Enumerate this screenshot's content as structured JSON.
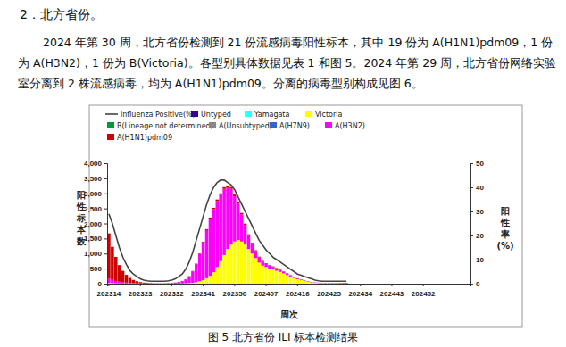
{
  "heading": "2．北方省份。",
  "paragraph": [
    "2024 年第 30 周，北方省份检测到 21 份流感病毒阳性标本，其中 19 份为 A(H1N1)pdm09，1 份",
    "为 A(H3N2)，1 份为 B(Victoria)。各型别具体数据见表 1 和图 5。2024 年第 29 周，北方省份网络实验",
    "室分离到 2 株流感病毒，均为 A(H1N1)pdm09。分离的病毒型别构成见图 6。"
  ],
  "caption": "图 5   北方省份 ILI 标本检测结果",
  "chart_data": {
    "type": "bar",
    "stacked": true,
    "grid": false,
    "legend": "top-left",
    "x_label": "周次",
    "y_label": "阳性标本数",
    "y2_label": "阳性率(%)",
    "categories": [
      "202314",
      null,
      null,
      null,
      null,
      null,
      null,
      null,
      null,
      "202323",
      null,
      null,
      null,
      null,
      null,
      null,
      null,
      null,
      "202332",
      null,
      null,
      null,
      null,
      null,
      null,
      null,
      null,
      "202341",
      null,
      null,
      null,
      null,
      null,
      null,
      null,
      null,
      "202350",
      null,
      null,
      null,
      null,
      null,
      null,
      null,
      null,
      "202407",
      null,
      null,
      null,
      null,
      null,
      null,
      null,
      null,
      "202416",
      null,
      null,
      null,
      null,
      null,
      null,
      null,
      null,
      "202425",
      null,
      null,
      null,
      null,
      null,
      null,
      null,
      null,
      "202434",
      null,
      null,
      null,
      null,
      null,
      null,
      null,
      null,
      "202443",
      null,
      null,
      null,
      null,
      null,
      null,
      null,
      null,
      "202452",
      null,
      null,
      null,
      null,
      null,
      null,
      null,
      null,
      null,
      null,
      null,
      null,
      null
    ],
    "ylim": [
      0,
      4000
    ],
    "yticks": [
      0,
      500,
      {
        "value": 1000,
        "label": "1,000"
      },
      {
        "value": 1500,
        "label": "1,500"
      },
      {
        "value": 2000,
        "label": "2,000"
      },
      {
        "value": 2500,
        "label": "2,500"
      },
      {
        "value": 3000,
        "label": "3,000"
      },
      {
        "value": 3500,
        "label": "3,500"
      },
      {
        "value": 4000,
        "label": "4,000"
      }
    ],
    "y2lim": [
      0,
      50
    ],
    "y2ticks": [
      0,
      10,
      20,
      30,
      40,
      50
    ],
    "series": [
      {
        "name": "influenza Positive(%)",
        "type": "line",
        "axis": "y2",
        "color": "#444444",
        "values": [
          29,
          25,
          20,
          15,
          11,
          8,
          5.5,
          4,
          3,
          2,
          1.5,
          1.2,
          1,
          1,
          1,
          1,
          1,
          1.2,
          1.5,
          2,
          3,
          4,
          6,
          9,
          13,
          18,
          23,
          28,
          33,
          37,
          40,
          42,
          43,
          43,
          42,
          41,
          39,
          36,
          33,
          30,
          27,
          24,
          21,
          18,
          16,
          14,
          12.5,
          11,
          10,
          9,
          8,
          7,
          6,
          5,
          4,
          3.5,
          3,
          2.5,
          2,
          1.5,
          1.2,
          1,
          1,
          1,
          1,
          1,
          1,
          1,
          1,
          null,
          null,
          null,
          null,
          null,
          null,
          null,
          null,
          null,
          null,
          null,
          null,
          null,
          null,
          null,
          null,
          null,
          null,
          null,
          null,
          null,
          null,
          null,
          null,
          null,
          null,
          null,
          null,
          null,
          null,
          null,
          null,
          null,
          null,
          null
        ]
      },
      {
        "name": "Untyped",
        "type": "bar",
        "color": "#330099",
        "values": [
          0,
          0,
          0,
          0,
          0,
          0,
          0,
          0,
          0,
          0,
          0,
          0,
          0,
          0,
          0,
          0,
          0,
          0,
          0,
          0,
          0,
          0,
          0,
          0,
          0,
          0,
          0,
          0,
          0,
          0,
          0,
          0,
          0,
          0,
          0,
          0,
          0,
          0,
          0,
          0,
          0,
          0,
          0,
          0,
          0,
          0,
          0,
          0,
          0,
          0,
          0,
          0,
          0,
          0,
          0,
          0,
          0,
          0,
          0,
          0,
          0,
          0,
          0,
          0,
          0,
          0,
          0,
          0,
          0,
          null,
          null,
          null,
          null,
          null,
          null,
          null,
          null,
          null,
          null,
          null,
          null,
          null,
          null,
          null,
          null,
          null,
          null,
          null,
          null,
          null,
          null,
          null,
          null,
          null,
          null,
          null,
          null,
          null,
          null,
          null,
          null,
          null,
          null,
          null
        ]
      },
      {
        "name": "Yamagata",
        "type": "bar",
        "color": "#33ffff",
        "values": [
          0,
          0,
          0,
          0,
          0,
          0,
          0,
          0,
          0,
          0,
          0,
          0,
          0,
          0,
          0,
          0,
          0,
          0,
          0,
          0,
          0,
          0,
          0,
          0,
          0,
          0,
          0,
          0,
          0,
          0,
          0,
          0,
          0,
          0,
          0,
          0,
          0,
          0,
          0,
          0,
          0,
          0,
          0,
          0,
          0,
          0,
          0,
          0,
          0,
          0,
          0,
          0,
          0,
          0,
          0,
          0,
          0,
          0,
          0,
          0,
          0,
          0,
          0,
          0,
          0,
          0,
          0,
          0,
          0,
          null,
          null,
          null,
          null,
          null,
          null,
          null,
          null,
          null,
          null,
          null,
          null,
          null,
          null,
          null,
          null,
          null,
          null,
          null,
          null,
          null,
          null,
          null,
          null,
          null,
          null,
          null,
          null,
          null,
          null,
          null,
          null,
          null,
          null,
          null
        ]
      },
      {
        "name": "Victoria",
        "type": "bar",
        "color": "#ffff00",
        "values": [
          20,
          15,
          10,
          8,
          5,
          4,
          3,
          2,
          2,
          1,
          1,
          1,
          1,
          1,
          1,
          1,
          1,
          2,
          2,
          3,
          4,
          6,
          10,
          20,
          30,
          50,
          80,
          120,
          180,
          260,
          380,
          550,
          750,
          950,
          1150,
          1300,
          1400,
          1450,
          1400,
          1300,
          1150,
          1000,
          850,
          700,
          600,
          550,
          500,
          470,
          430,
          390,
          340,
          290,
          240,
          190,
          150,
          115,
          85,
          60,
          42,
          30,
          20,
          14,
          10,
          7,
          5,
          4,
          3,
          2,
          1,
          null,
          null,
          null,
          null,
          null,
          null,
          null,
          null,
          null,
          null,
          null,
          null,
          null,
          null,
          null,
          null,
          null,
          null,
          null,
          null,
          null,
          null,
          null,
          null,
          null,
          null,
          null,
          null,
          null,
          null,
          null,
          null,
          null,
          null,
          null
        ]
      },
      {
        "name": "B(Lineage not determined)",
        "type": "bar",
        "color": "#009933",
        "values": [
          0,
          0,
          0,
          0,
          0,
          0,
          0,
          0,
          0,
          0,
          0,
          0,
          0,
          0,
          0,
          0,
          0,
          0,
          0,
          0,
          0,
          0,
          0,
          0,
          0,
          0,
          0,
          0,
          0,
          0,
          0,
          0,
          0,
          0,
          0,
          0,
          0,
          0,
          0,
          0,
          0,
          0,
          0,
          0,
          0,
          0,
          0,
          0,
          0,
          0,
          0,
          0,
          0,
          0,
          0,
          0,
          0,
          0,
          0,
          0,
          0,
          0,
          0,
          0,
          0,
          0,
          0,
          0,
          0,
          null,
          null,
          null,
          null,
          null,
          null,
          null,
          null,
          null,
          null,
          null,
          null,
          null,
          null,
          null,
          null,
          null,
          null,
          null,
          null,
          null,
          null,
          null,
          null,
          null,
          null,
          null,
          null,
          null,
          null,
          null,
          null,
          null,
          null,
          null
        ]
      },
      {
        "name": "A(Unsubtyped)",
        "type": "bar",
        "color": "#888888",
        "values": [
          0,
          0,
          0,
          0,
          0,
          0,
          0,
          0,
          0,
          0,
          0,
          0,
          0,
          0,
          0,
          0,
          0,
          0,
          0,
          0,
          0,
          0,
          0,
          0,
          0,
          0,
          0,
          0,
          0,
          0,
          0,
          0,
          0,
          0,
          0,
          0,
          0,
          0,
          0,
          0,
          0,
          0,
          0,
          0,
          0,
          0,
          0,
          0,
          0,
          0,
          0,
          0,
          0,
          0,
          0,
          0,
          0,
          0,
          0,
          0,
          0,
          0,
          0,
          0,
          0,
          0,
          0,
          0,
          0,
          null,
          null,
          null,
          null,
          null,
          null,
          null,
          null,
          null,
          null,
          null,
          null,
          null,
          null,
          null,
          null,
          null,
          null,
          null,
          null,
          null,
          null,
          null,
          null,
          null,
          null,
          null,
          null,
          null,
          null,
          null,
          null,
          null,
          null,
          null
        ]
      },
      {
        "name": "A(H7N9)",
        "type": "bar",
        "color": "#3366cc",
        "values": [
          0,
          0,
          0,
          0,
          0,
          0,
          0,
          0,
          0,
          0,
          0,
          0,
          0,
          0,
          0,
          0,
          0,
          0,
          0,
          0,
          0,
          0,
          0,
          0,
          0,
          0,
          0,
          0,
          0,
          0,
          0,
          0,
          0,
          0,
          0,
          0,
          0,
          0,
          0,
          0,
          0,
          0,
          0,
          0,
          0,
          0,
          0,
          0,
          0,
          0,
          0,
          0,
          0,
          0,
          0,
          0,
          0,
          0,
          0,
          0,
          0,
          0,
          0,
          0,
          0,
          0,
          0,
          0,
          0,
          null,
          null,
          null,
          null,
          null,
          null,
          null,
          null,
          null,
          null,
          null,
          null,
          null,
          null,
          null,
          null,
          null,
          null,
          null,
          null,
          null,
          null,
          null,
          null,
          null,
          null,
          null,
          null,
          null,
          null,
          null,
          null,
          null,
          null,
          null
        ]
      },
      {
        "name": "A(H3N2)",
        "type": "bar",
        "color": "#ff00ff",
        "values": [
          150,
          110,
          80,
          60,
          40,
          30,
          20,
          15,
          10,
          8,
          6,
          5,
          5,
          5,
          6,
          8,
          10,
          15,
          20,
          30,
          50,
          80,
          130,
          220,
          380,
          600,
          900,
          1250,
          1600,
          1900,
          2100,
          2200,
          2200,
          2200,
          2050,
          1850,
          1500,
          1200,
          900,
          650,
          450,
          320,
          230,
          170,
          130,
          110,
          95,
          85,
          75,
          65,
          55,
          45,
          35,
          28,
          22,
          17,
          13,
          10,
          8,
          6,
          5,
          4,
          3,
          3,
          2,
          2,
          2,
          1,
          1,
          null,
          null,
          null,
          null,
          null,
          null,
          null,
          null,
          null,
          null,
          null,
          null,
          null,
          null,
          null,
          null,
          null,
          null,
          null,
          null,
          null,
          null,
          null,
          null,
          null,
          null,
          null,
          null,
          null,
          null,
          null,
          null,
          null,
          null,
          null
        ]
      },
      {
        "name": "A(H1N1)pdm09",
        "type": "bar",
        "color": "#cc0000",
        "values": [
          1500,
          1100,
          800,
          550,
          380,
          260,
          170,
          110,
          70,
          45,
          30,
          20,
          15,
          10,
          8,
          6,
          5,
          5,
          5,
          5,
          5,
          6,
          8,
          10,
          12,
          15,
          20,
          25,
          30,
          35,
          40,
          45,
          50,
          55,
          60,
          60,
          60,
          55,
          50,
          45,
          40,
          35,
          30,
          28,
          25,
          22,
          20,
          18,
          16,
          15,
          14,
          12,
          10,
          10,
          9,
          8,
          8,
          7,
          7,
          8,
          8,
          9,
          10,
          11,
          12,
          13,
          15,
          17,
          19,
          null,
          null,
          null,
          null,
          null,
          null,
          null,
          null,
          null,
          null,
          null,
          null,
          null,
          null,
          null,
          null,
          null,
          null,
          null,
          null,
          null,
          null,
          null,
          null,
          null,
          null,
          null,
          null,
          null,
          null,
          null,
          null,
          null,
          null,
          null
        ]
      }
    ]
  }
}
